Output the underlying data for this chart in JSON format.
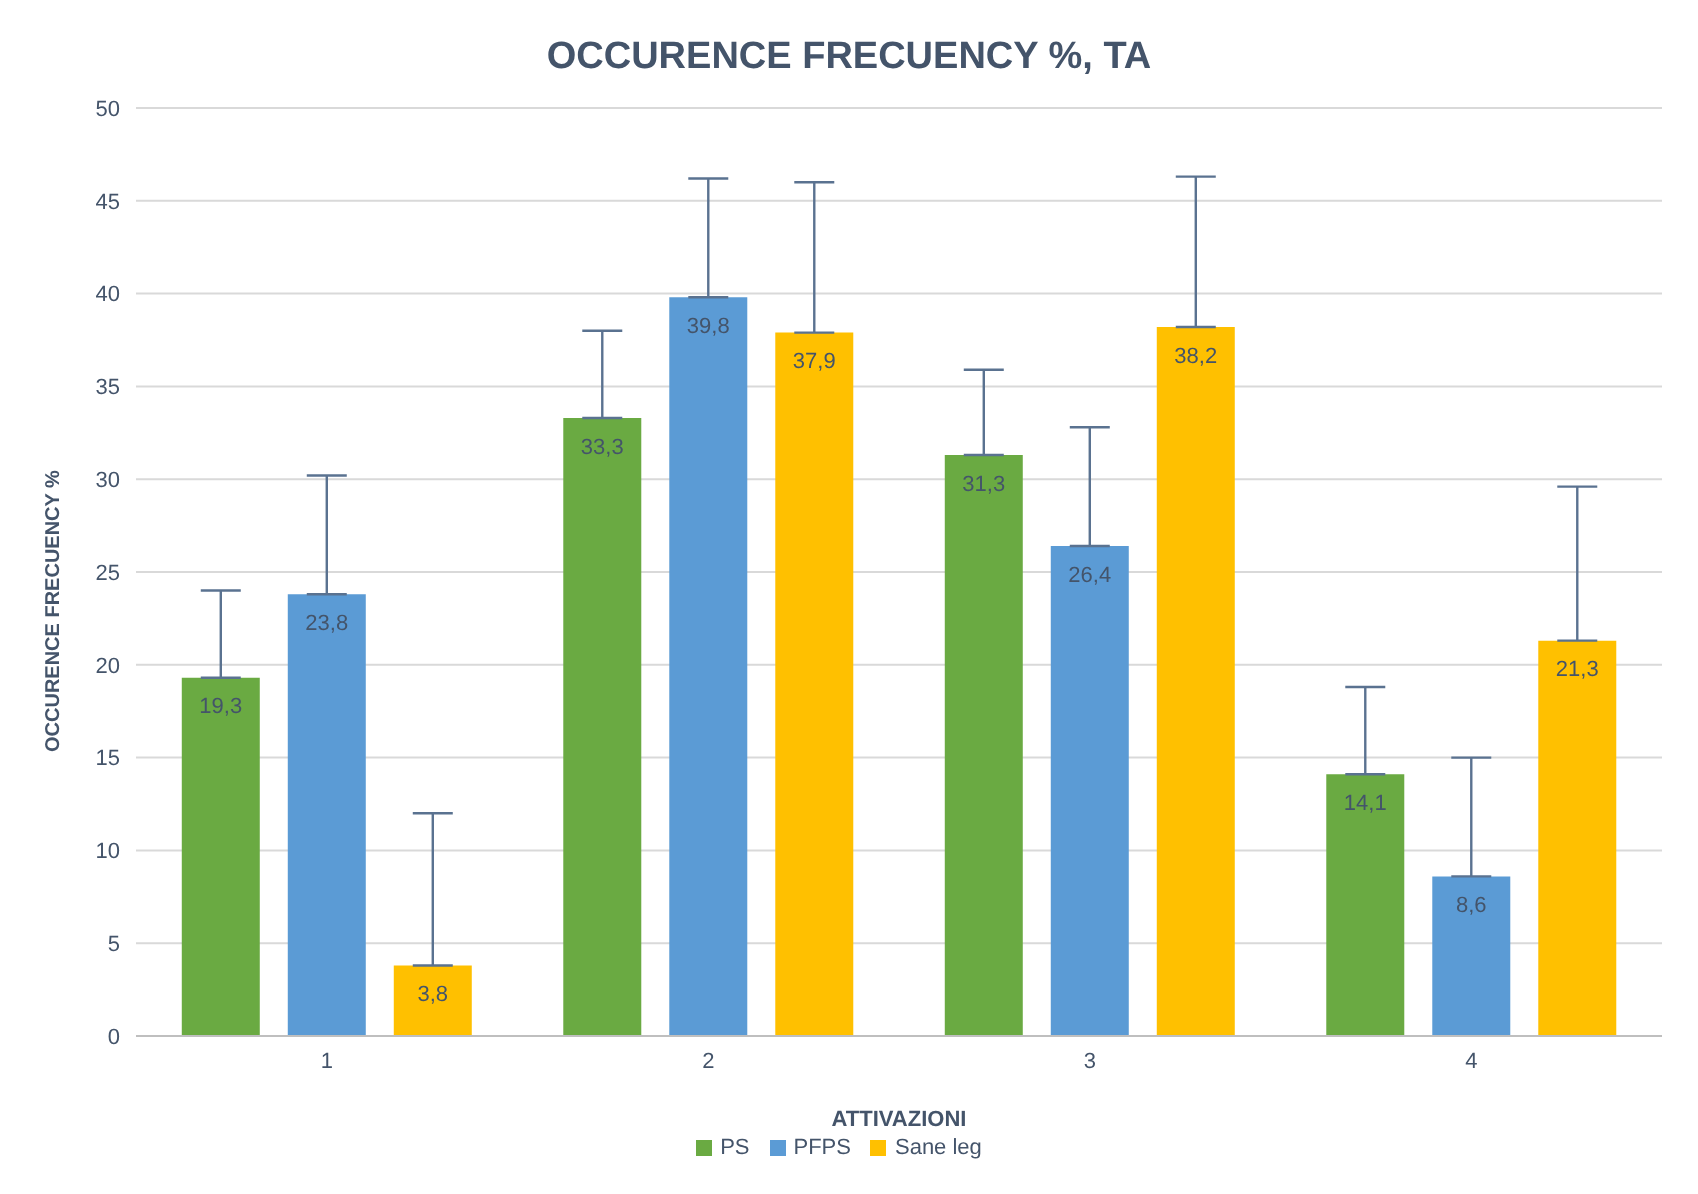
{
  "chart_data": {
    "type": "bar",
    "title": "OCCURENCE FRECUENCY %, TA",
    "xlabel": "ATTIVAZIONI",
    "ylabel": "OCCURENCE FRECUENCY %",
    "categories": [
      "1",
      "2",
      "3",
      "4"
    ],
    "series": [
      {
        "name": "PS",
        "color": "#6aaa42",
        "values": [
          19.3,
          33.3,
          31.3,
          14.1
        ],
        "value_labels": [
          "19,3",
          "33,3",
          "31,3",
          "14,1"
        ],
        "errors": [
          [
            19.3,
            24
          ],
          [
            33.3,
            38
          ],
          [
            31.3,
            35.9
          ],
          [
            14.1,
            18.8
          ]
        ]
      },
      {
        "name": "PFPS",
        "color": "#5b9bd5",
        "values": [
          23.8,
          39.8,
          26.4,
          8.6
        ],
        "value_labels": [
          "23,8",
          "39,8",
          "26,4",
          "8,6"
        ],
        "errors": [
          [
            23.8,
            30.2
          ],
          [
            39.8,
            46.2
          ],
          [
            26.4,
            32.8
          ],
          [
            8.6,
            15
          ]
        ]
      },
      {
        "name": "Sane leg",
        "color": "#ffc000",
        "values": [
          3.8,
          37.9,
          38.2,
          21.3
        ],
        "value_labels": [
          "3,8",
          "37,9",
          "38,2",
          "21,3"
        ],
        "errors": [
          [
            3.8,
            12
          ],
          [
            37.9,
            46
          ],
          [
            38.2,
            46.3
          ],
          [
            21.3,
            29.6
          ]
        ]
      }
    ],
    "ylim": [
      0,
      50
    ],
    "yticks": [
      0,
      5,
      10,
      15,
      20,
      25,
      30,
      35,
      40,
      45,
      50
    ],
    "grid": "y",
    "legend": "bottom"
  }
}
